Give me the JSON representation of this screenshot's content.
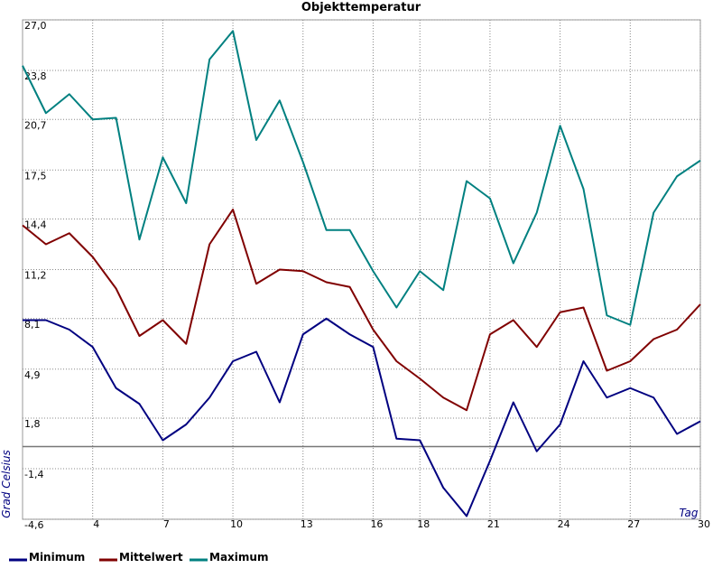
{
  "chart_data": {
    "type": "line",
    "title": "Objekttemperatur",
    "xlabel": "Tag",
    "ylabel": "Grad Celsius",
    "x": [
      1,
      2,
      3,
      4,
      5,
      6,
      7,
      8,
      9,
      10,
      11,
      12,
      13,
      14,
      15,
      16,
      17,
      18,
      19,
      20,
      21,
      22,
      23,
      24,
      25,
      26,
      27,
      28,
      29,
      30
    ],
    "series": [
      {
        "name": "Minimum",
        "color": "#000080",
        "values": [
          8.0,
          8.0,
          7.4,
          6.3,
          3.7,
          2.7,
          0.4,
          1.4,
          3.1,
          5.4,
          6.0,
          2.8,
          7.1,
          8.1,
          7.1,
          6.3,
          0.5,
          0.4,
          -2.6,
          -4.4,
          -0.9,
          2.8,
          -0.3,
          1.4,
          5.4,
          3.1,
          3.7,
          3.1,
          0.8,
          1.6
        ]
      },
      {
        "name": "Mittelwert",
        "color": "#800000",
        "values": [
          14.0,
          12.8,
          13.5,
          12.0,
          10.0,
          7.0,
          8.0,
          6.5,
          12.8,
          15.0,
          10.3,
          11.2,
          11.1,
          10.4,
          10.1,
          7.4,
          5.4,
          4.3,
          3.1,
          2.3,
          7.1,
          8.0,
          6.3,
          8.5,
          8.8,
          4.8,
          5.4,
          6.8,
          7.4,
          9.0
        ]
      },
      {
        "name": "Maximum",
        "color": "#008080",
        "values": [
          24.1,
          21.1,
          22.3,
          20.7,
          20.8,
          13.1,
          18.3,
          15.4,
          24.5,
          26.3,
          19.4,
          21.9,
          18.0,
          13.7,
          13.7,
          11.1,
          8.8,
          11.1,
          9.9,
          16.8,
          15.7,
          11.6,
          14.8,
          20.3,
          16.3,
          8.3,
          7.7,
          14.8,
          17.1,
          18.1
        ]
      }
    ],
    "xlim": [
      1,
      30
    ],
    "xticks": [
      4,
      7,
      10,
      13,
      16,
      18,
      21,
      24,
      27,
      30
    ],
    "ylim": [
      -4.6,
      27.0
    ],
    "yticks": [
      {
        "value": -4.6,
        "label": "-4,6"
      },
      {
        "value": -1.4,
        "label": "-1,4"
      },
      {
        "value": 1.8,
        "label": "1,8"
      },
      {
        "value": 4.9,
        "label": "4,9"
      },
      {
        "value": 8.1,
        "label": "8,1"
      },
      {
        "value": 11.2,
        "label": "11,2"
      },
      {
        "value": 14.4,
        "label": "14,4"
      },
      {
        "value": 17.5,
        "label": "17,5"
      },
      {
        "value": 20.7,
        "label": "20,7"
      },
      {
        "value": 23.8,
        "label": "23,8"
      },
      {
        "value": 27.0,
        "label": "27,0"
      }
    ],
    "grid": true
  }
}
